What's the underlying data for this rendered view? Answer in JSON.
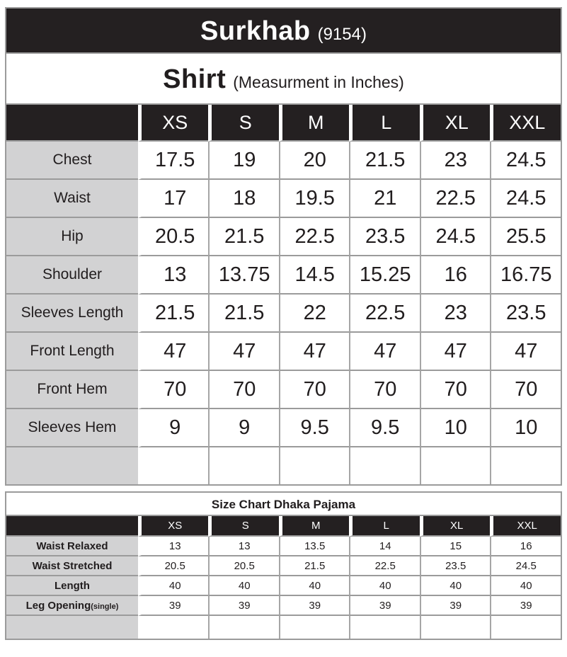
{
  "colors": {
    "header_black": "#242021",
    "label_gray": "#d2d2d3",
    "border_gray": "#9b9b9b",
    "text_white": "#ffffff",
    "text_black": "#211d1e"
  },
  "shirt_chart": {
    "type": "table",
    "brand": "Surkhab",
    "brand_code": "(9154)",
    "subtitle": "Shirt",
    "subtitle_note": "(Measurment in Inches)",
    "sizes": [
      "XS",
      "S",
      "M",
      "L",
      "XL",
      "XXL"
    ],
    "rows": [
      {
        "label": "Chest",
        "values": [
          "17.5",
          "19",
          "20",
          "21.5",
          "23",
          "24.5"
        ]
      },
      {
        "label": "Waist",
        "values": [
          "17",
          "18",
          "19.5",
          "21",
          "22.5",
          "24.5"
        ]
      },
      {
        "label": "Hip",
        "values": [
          "20.5",
          "21.5",
          "22.5",
          "23.5",
          "24.5",
          "25.5"
        ]
      },
      {
        "label": "Shoulder",
        "values": [
          "13",
          "13.75",
          "14.5",
          "15.25",
          "16",
          "16.75"
        ]
      },
      {
        "label": "Sleeves Length",
        "values": [
          "21.5",
          "21.5",
          "22",
          "22.5",
          "23",
          "23.5"
        ]
      },
      {
        "label": "Front Length",
        "values": [
          "47",
          "47",
          "47",
          "47",
          "47",
          "47"
        ]
      },
      {
        "label": "Front Hem",
        "values": [
          "70",
          "70",
          "70",
          "70",
          "70",
          "70"
        ]
      },
      {
        "label": "Sleeves Hem",
        "values": [
          "9",
          "9",
          "9.5",
          "9.5",
          "10",
          "10"
        ]
      }
    ]
  },
  "pajama_chart": {
    "type": "table",
    "title": "Size Chart Dhaka Pajama",
    "sizes": [
      "XS",
      "S",
      "M",
      "L",
      "XL",
      "XXL"
    ],
    "rows": [
      {
        "label": "Waist Relaxed",
        "values": [
          "13",
          "13",
          "13.5",
          "14",
          "15",
          "16"
        ]
      },
      {
        "label": "Waist Stretched",
        "values": [
          "20.5",
          "20.5",
          "21.5",
          "22.5",
          "23.5",
          "24.5"
        ]
      },
      {
        "label": "Length",
        "values": [
          "40",
          "40",
          "40",
          "40",
          "40",
          "40"
        ]
      },
      {
        "label": "Leg Opening",
        "label_suffix": "(single)",
        "values": [
          "39",
          "39",
          "39",
          "39",
          "39",
          "39"
        ]
      }
    ]
  }
}
